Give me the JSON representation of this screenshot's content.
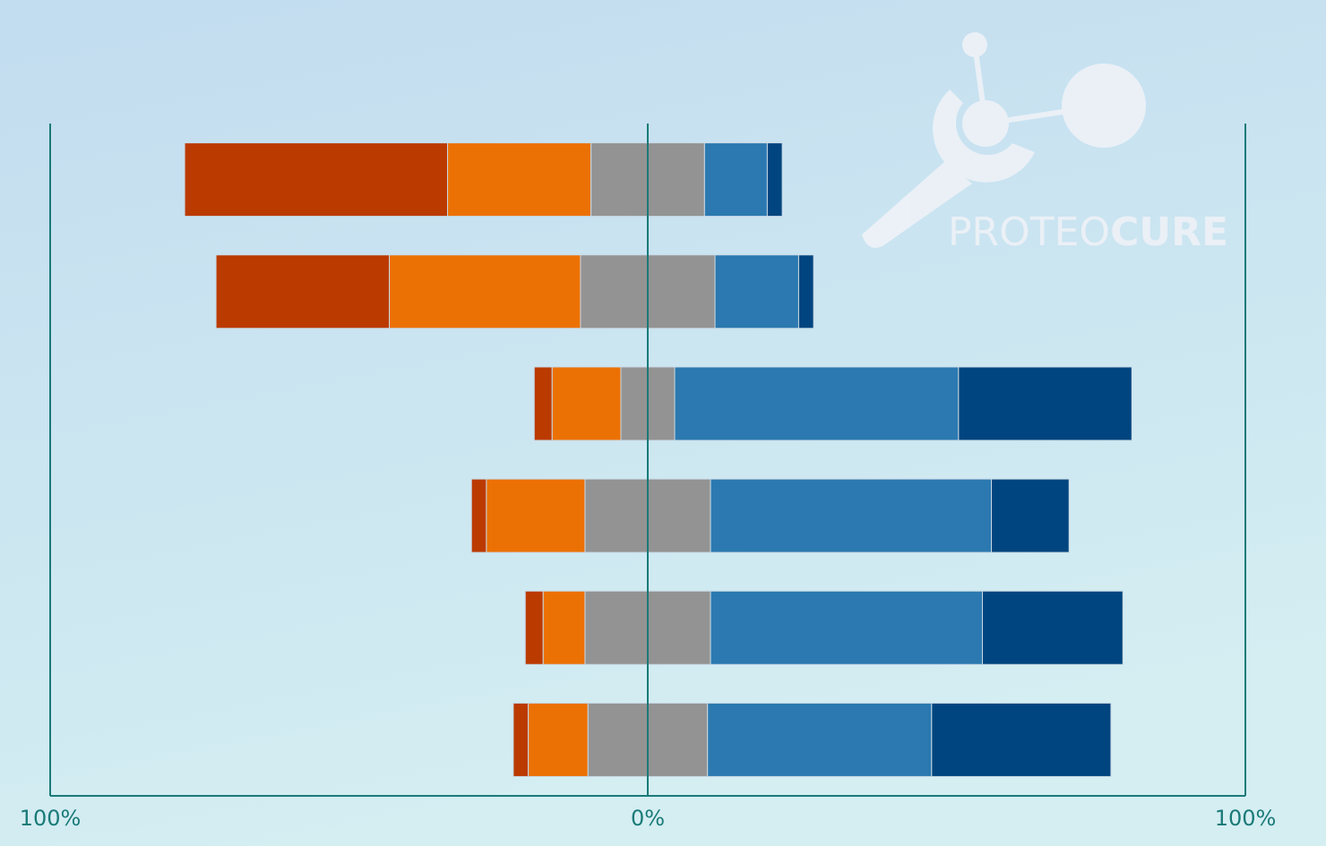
{
  "chart_data": {
    "type": "diverging_bar",
    "xlim": [
      -100,
      100
    ],
    "xticks": [
      {
        "value": -100,
        "label": "100%"
      },
      {
        "value": 0,
        "label": "0%"
      },
      {
        "value": 100,
        "label": "100%"
      }
    ],
    "grid": true,
    "annotations": [
      "PROTEO",
      "CURE"
    ],
    "series": [
      {
        "color": "#bb3a00",
        "values": [
          44,
          29,
          3,
          2.5,
          3,
          2.5
        ]
      },
      {
        "color": "#ec7104",
        "values": [
          24,
          32,
          11.5,
          16.5,
          7,
          10
        ]
      },
      {
        "color": "#939393",
        "values": [
          19,
          22.5,
          9,
          21,
          21,
          20
        ]
      },
      {
        "color": "#2b79b0",
        "values": [
          10.5,
          14,
          47.5,
          47,
          45.5,
          37.5
        ]
      },
      {
        "color": "#00457f",
        "values": [
          2.5,
          2.5,
          29,
          13,
          23.5,
          30
        ]
      }
    ]
  }
}
